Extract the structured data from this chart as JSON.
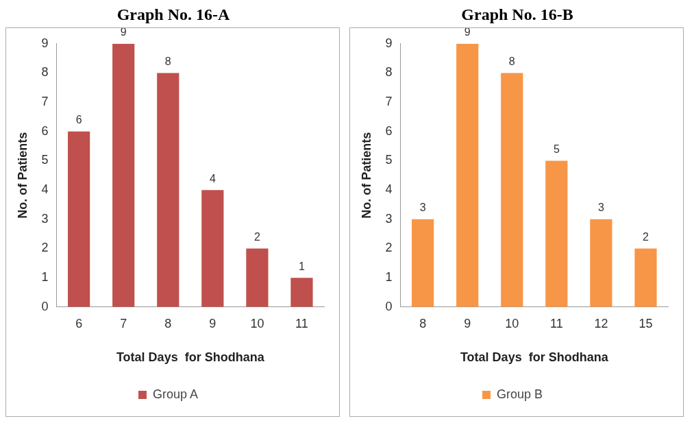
{
  "chart_data": [
    {
      "type": "bar",
      "title": "Graph No. 16-A",
      "xlabel": "Total Days  for Shodhana",
      "ylabel": "No. of Patients",
      "categories": [
        "6",
        "7",
        "8",
        "9",
        "10",
        "11"
      ],
      "series": [
        {
          "name": "Group A",
          "color": "#c0504d",
          "values": [
            6,
            9,
            8,
            4,
            2,
            1
          ]
        }
      ],
      "ylim": [
        0,
        9
      ],
      "yticks": [
        0,
        1,
        2,
        3,
        4,
        5,
        6,
        7,
        8,
        9
      ],
      "grid": false,
      "legend": "bottom",
      "data_labels": true
    },
    {
      "type": "bar",
      "title": "Graph No. 16-B",
      "xlabel": "Total Days  for Shodhana",
      "ylabel": "No. of Patients",
      "categories": [
        "8",
        "9",
        "10",
        "11",
        "12",
        "15"
      ],
      "series": [
        {
          "name": "Group B",
          "color": "#f79646",
          "values": [
            3,
            9,
            8,
            5,
            3,
            2
          ]
        }
      ],
      "ylim": [
        0,
        9
      ],
      "yticks": [
        0,
        1,
        2,
        3,
        4,
        5,
        6,
        7,
        8,
        9
      ],
      "grid": false,
      "legend": "bottom",
      "data_labels": true
    }
  ]
}
